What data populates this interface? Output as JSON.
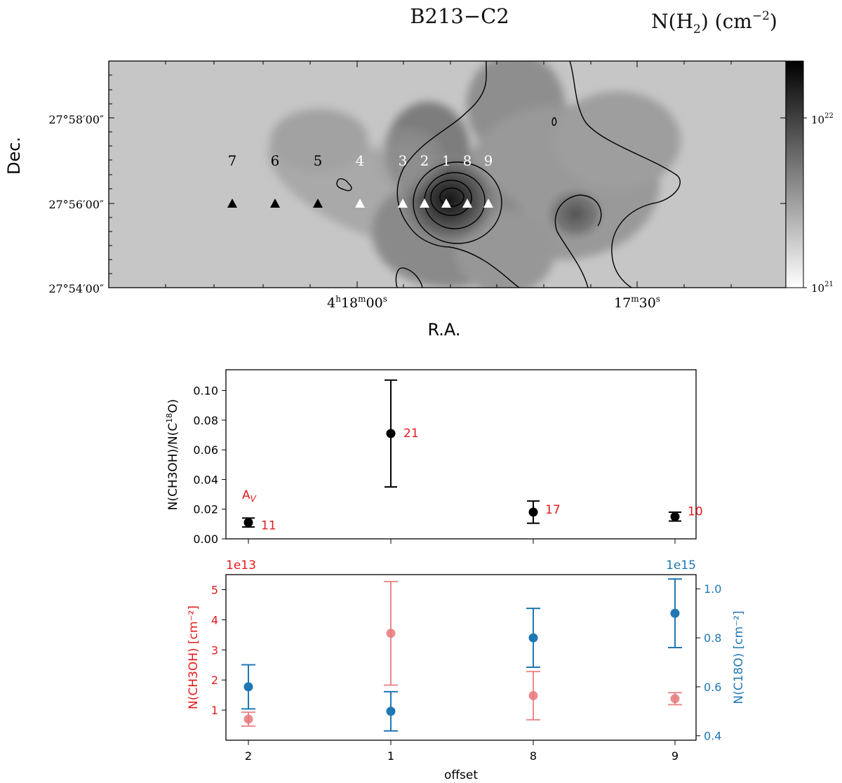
{
  "chart_data": [
    {
      "type": "heatmap",
      "title": "B213−C2",
      "colorbar_label": "N(H",
      "colorbar_label_sub": "2",
      "colorbar_label_unit": ") (cm",
      "colorbar_label_exp": "−2",
      "colorbar_label_close": ")",
      "colorbar_ticks": [
        {
          "base": "10",
          "exp": "22"
        },
        {
          "base": "10",
          "exp": "21"
        }
      ],
      "xlabel": "R.A.",
      "ylabel": "Dec.",
      "x_ticks": [
        {
          "h": "4",
          "hu": "h",
          "m": "18",
          "mu": "m",
          "s": "00",
          "su": "s"
        },
        {
          "h": "",
          "hu": "",
          "m": "17",
          "mu": "m",
          "s": "30",
          "su": "s"
        }
      ],
      "y_ticks": [
        "27°58′00″",
        "27°56′00″",
        "27°54′00″"
      ],
      "offset_markers": [
        {
          "label": "7",
          "color": "black"
        },
        {
          "label": "6",
          "color": "black"
        },
        {
          "label": "5",
          "color": "black"
        },
        {
          "label": "4",
          "color": "white"
        },
        {
          "label": "3",
          "color": "white"
        },
        {
          "label": "2",
          "color": "white"
        },
        {
          "label": "1",
          "color": "white"
        },
        {
          "label": "8",
          "color": "white"
        },
        {
          "label": "9",
          "color": "white"
        }
      ]
    },
    {
      "type": "scatter",
      "ylabel": "N(CH3OH)/N(C",
      "ylabel_sup": "18",
      "ylabel_end": "O)",
      "categories": [
        "2",
        "1",
        "8",
        "9"
      ],
      "values": [
        0.011,
        0.071,
        0.018,
        0.015
      ],
      "errors": [
        0.003,
        0.036,
        0.0075,
        0.003
      ],
      "av_title": "A",
      "av_sub": "V",
      "av_labels": [
        "11",
        "21",
        "17",
        "10"
      ],
      "ylim": [
        0,
        0.114
      ],
      "yticks": [
        "0.00",
        "0.02",
        "0.04",
        "0.06",
        "0.08",
        "0.10"
      ],
      "color": "#000000",
      "av_color": "#e41a1c"
    },
    {
      "type": "scatter",
      "xlabel": "offset",
      "categories": [
        "2",
        "1",
        "8",
        "9"
      ],
      "series": [
        {
          "name": "N(CH3OH) [cm⁻²]",
          "axis": "left",
          "values": [
            0.7,
            3.55,
            1.48,
            1.38
          ],
          "errors": [
            0.23,
            1.72,
            0.8,
            0.2
          ],
          "color": "#e8787a",
          "scale_label": "1e13"
        },
        {
          "name": "N(C18O) [cm⁻²]",
          "axis": "right",
          "values": [
            0.6,
            0.5,
            0.8,
            0.9
          ],
          "errors": [
            0.09,
            0.08,
            0.12,
            0.14
          ],
          "color": "#1f77b4",
          "scale_label": "1e15"
        }
      ],
      "left_ylim": [
        0,
        5.5
      ],
      "left_yticks": [
        "1",
        "2",
        "3",
        "4",
        "5"
      ],
      "right_ylim": [
        0.382,
        1.058
      ],
      "right_yticks": [
        "0.4",
        "0.6",
        "0.8",
        "1.0"
      ]
    }
  ]
}
